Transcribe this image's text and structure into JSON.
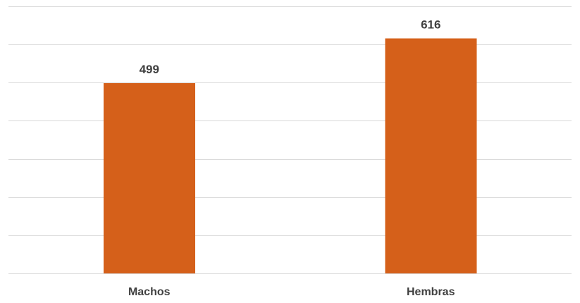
{
  "chart_data": {
    "type": "bar",
    "categories": [
      "Machos",
      "Hembras"
    ],
    "values": [
      499,
      616
    ],
    "data_labels": [
      "499",
      "616"
    ],
    "title": "",
    "xlabel": "",
    "ylabel": "",
    "ylim": [
      0,
      700
    ],
    "y_ticks_shown": false,
    "grid": true,
    "legend": "none",
    "bar_color": "#D5601A",
    "grid_color": "#D9D9D9",
    "label_color": "#404040"
  }
}
